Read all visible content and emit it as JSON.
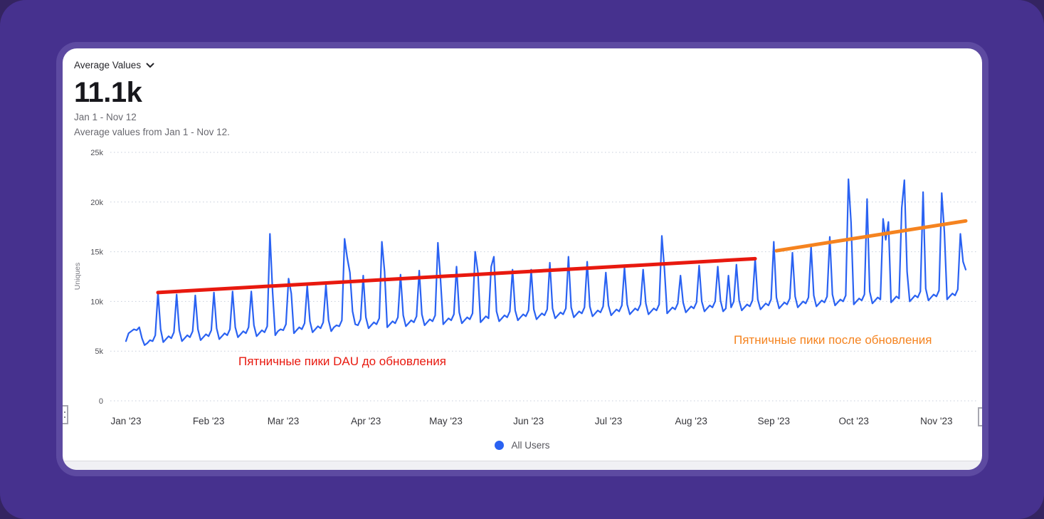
{
  "header": {
    "metric_selector_label": "Average Values",
    "value": "11.1k",
    "date_range": "Jan 1 - Nov 12",
    "description": "Average values from Jan 1 - Nov 12."
  },
  "legend": {
    "items": [
      {
        "label": "All Users",
        "color": "#2a62f2"
      }
    ]
  },
  "annotations": {
    "before": {
      "text": "Пятничные пики DAU до обновления",
      "color": "#e8190f"
    },
    "after": {
      "text": "Пятничные пики после обновления",
      "color": "#f5831f"
    }
  },
  "chart_data": {
    "type": "line",
    "title": "Average Values",
    "ylabel": "Uniques",
    "values_unit": "thousands",
    "ylim": [
      0,
      25
    ],
    "grid": "horizontal-dotted",
    "legend_position": "bottom-center",
    "y_ticks": [
      {
        "label": "0",
        "value": 0
      },
      {
        "label": "5k",
        "value": 5
      },
      {
        "label": "10k",
        "value": 10
      },
      {
        "label": "15k",
        "value": 15
      },
      {
        "label": "20k",
        "value": 20
      },
      {
        "label": "25k",
        "value": 25
      }
    ],
    "x_ticks": [
      {
        "label": "Jan '23",
        "day": 0
      },
      {
        "label": "Feb '23",
        "day": 31
      },
      {
        "label": "Mar '23",
        "day": 59
      },
      {
        "label": "Apr '23",
        "day": 90
      },
      {
        "label": "May '23",
        "day": 120
      },
      {
        "label": "Jun '23",
        "day": 151
      },
      {
        "label": "Jul '23",
        "day": 181
      },
      {
        "label": "Aug '23",
        "day": 212
      },
      {
        "label": "Sep '23",
        "day": 243
      },
      {
        "label": "Oct '23",
        "day": 273
      },
      {
        "label": "Nov '23",
        "day": 304
      }
    ],
    "x_range": {
      "start": "Jan 1 '23",
      "end": "Nov 12 '23",
      "days": 316
    },
    "series": [
      {
        "name": "All Users",
        "color": "#2a62f2",
        "week_start": "Sunday",
        "weekly_values": [
          [
            6.0,
            6.8,
            7.0,
            7.2,
            7.1,
            7.4,
            6.3
          ],
          [
            5.6,
            5.8,
            6.1,
            6.0,
            6.6,
            10.9,
            7.2
          ],
          [
            5.9,
            6.2,
            6.5,
            6.3,
            6.9,
            10.7,
            7.1
          ],
          [
            6.0,
            6.3,
            6.6,
            6.4,
            7.0,
            10.6,
            7.2
          ],
          [
            6.1,
            6.4,
            6.7,
            6.5,
            7.1,
            10.9,
            7.3
          ],
          [
            6.2,
            6.5,
            6.8,
            6.6,
            7.2,
            11.0,
            7.4
          ],
          [
            6.4,
            6.7,
            7.0,
            6.8,
            7.4,
            11.0,
            7.6
          ],
          [
            6.5,
            6.8,
            7.1,
            6.9,
            7.5,
            16.8,
            11.0
          ],
          [
            6.6,
            7.0,
            7.2,
            7.1,
            7.7,
            12.3,
            10.8
          ],
          [
            6.8,
            7.1,
            7.4,
            7.2,
            7.8,
            11.6,
            8.0
          ],
          [
            6.9,
            7.2,
            7.5,
            7.3,
            7.9,
            11.7,
            8.1
          ],
          [
            7.0,
            7.4,
            7.6,
            7.5,
            8.1,
            16.3,
            14.4
          ],
          [
            12.9,
            9.0,
            7.7,
            7.6,
            8.2,
            12.6,
            8.4
          ],
          [
            7.3,
            7.6,
            7.9,
            7.7,
            8.3,
            16.0,
            13.0
          ],
          [
            7.4,
            7.7,
            8.0,
            7.8,
            8.4,
            12.7,
            8.6
          ],
          [
            7.5,
            7.8,
            8.1,
            7.9,
            8.5,
            13.1,
            8.7
          ],
          [
            7.6,
            7.9,
            8.2,
            8.0,
            8.6,
            15.9,
            12.2
          ],
          [
            7.7,
            8.0,
            8.3,
            8.1,
            8.7,
            13.5,
            8.9
          ],
          [
            7.8,
            8.1,
            8.4,
            8.2,
            8.8,
            15.0,
            13.0
          ],
          [
            7.9,
            8.2,
            8.5,
            8.3,
            13.5,
            14.5,
            9.0
          ],
          [
            8.0,
            8.3,
            8.6,
            8.4,
            9.0,
            13.2,
            9.1
          ],
          [
            8.1,
            8.4,
            8.7,
            8.5,
            9.1,
            13.2,
            9.2
          ],
          [
            8.2,
            8.5,
            8.8,
            8.6,
            9.2,
            13.9,
            9.3
          ],
          [
            8.3,
            8.6,
            8.9,
            8.7,
            9.3,
            14.5,
            9.4
          ],
          [
            8.4,
            8.7,
            9.0,
            8.8,
            9.4,
            14.0,
            9.5
          ],
          [
            8.5,
            8.8,
            9.1,
            8.9,
            9.5,
            12.9,
            9.6
          ],
          [
            8.6,
            8.9,
            9.2,
            9.0,
            9.6,
            13.4,
            9.7
          ],
          [
            8.7,
            9.0,
            9.3,
            9.1,
            9.7,
            13.2,
            9.8
          ],
          [
            8.7,
            9.0,
            9.3,
            9.1,
            9.7,
            16.6,
            13.2
          ],
          [
            8.8,
            9.1,
            9.4,
            9.2,
            9.8,
            12.6,
            9.9
          ],
          [
            8.9,
            9.2,
            9.5,
            9.3,
            9.9,
            13.6,
            10.0
          ],
          [
            9.0,
            9.3,
            9.6,
            9.4,
            10.0,
            13.5,
            10.1
          ],
          [
            9.0,
            9.3,
            12.6,
            9.4,
            10.0,
            13.7,
            10.1
          ],
          [
            9.1,
            9.4,
            9.7,
            9.5,
            10.1,
            14.3,
            10.2
          ],
          [
            9.2,
            9.5,
            9.8,
            9.6,
            10.2,
            16.0,
            10.4
          ],
          [
            9.3,
            9.6,
            9.9,
            9.7,
            10.3,
            14.9,
            10.5
          ],
          [
            9.4,
            9.7,
            10.0,
            9.8,
            10.4,
            15.5,
            10.6
          ],
          [
            9.5,
            9.8,
            10.1,
            9.9,
            10.5,
            16.5,
            10.7
          ],
          [
            9.6,
            9.9,
            10.2,
            10.0,
            10.6,
            22.3,
            17.9
          ],
          [
            9.7,
            10.0,
            10.3,
            10.1,
            10.7,
            20.3,
            11.0
          ],
          [
            9.8,
            10.1,
            10.4,
            10.2,
            18.3,
            16.2,
            18.0
          ],
          [
            9.9,
            10.2,
            10.5,
            10.3,
            19.4,
            22.2,
            13.0
          ],
          [
            10.0,
            10.3,
            10.6,
            10.4,
            11.0,
            21.0,
            11.3
          ],
          [
            10.1,
            10.4,
            10.7,
            10.5,
            11.1,
            20.9,
            17.0
          ],
          [
            10.2,
            10.5,
            10.8,
            10.6,
            11.2,
            16.8,
            14.0
          ],
          [
            13.2
          ]
        ]
      }
    ],
    "trend_lines": [
      {
        "id": "pre-update-friday-peaks",
        "color": "#e8190f",
        "from_day": 12,
        "from_value": 10.9,
        "to_day": 236,
        "to_value": 14.3
      },
      {
        "id": "post-update-friday-peaks",
        "color": "#f5831f",
        "from_day": 244,
        "from_value": 15.1,
        "to_day": 315,
        "to_value": 18.1
      }
    ]
  }
}
